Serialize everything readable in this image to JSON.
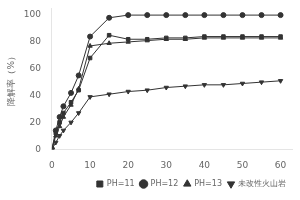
{
  "chart_data": {
    "type": "line",
    "y_label": "降解率（%）",
    "x": [
      0,
      1,
      2,
      3,
      5,
      7,
      10,
      15,
      20,
      25,
      30,
      35,
      40,
      45,
      50,
      55,
      60
    ],
    "series": [
      {
        "name": "PH=11",
        "color": "#333333",
        "marker": "square",
        "values": [
          0,
          12,
          20,
          27,
          35,
          44,
          68,
          85,
          82,
          82,
          83,
          83,
          84,
          84,
          84,
          84,
          84
        ]
      },
      {
        "name": "PH=12",
        "color": "#333333",
        "marker": "circle",
        "values": [
          0,
          14,
          24,
          32,
          42,
          55,
          84,
          98,
          100,
          100,
          100,
          100,
          100,
          100,
          100,
          100,
          100
        ]
      },
      {
        "name": "PH=13",
        "color": "#333333",
        "marker": "triangle",
        "values": [
          0,
          10,
          17,
          24,
          33,
          45,
          77,
          79,
          80,
          81,
          82,
          82,
          83,
          83,
          83,
          83,
          83
        ]
      },
      {
        "name": "未改性火山岩",
        "color": "#333333",
        "marker": "triangle_down",
        "values": [
          0,
          5,
          10,
          14,
          20,
          27,
          39,
          41,
          43,
          44,
          46,
          47,
          48,
          48,
          49,
          50,
          51
        ]
      }
    ],
    "xlim": [
      0,
      63
    ],
    "xticks": [
      0,
      10,
      20,
      30,
      40,
      50,
      60
    ],
    "ylim": [
      0,
      105
    ],
    "yticks": [
      0,
      20,
      40,
      60,
      80,
      100
    ],
    "grid": false,
    "legend": "lower right"
  }
}
